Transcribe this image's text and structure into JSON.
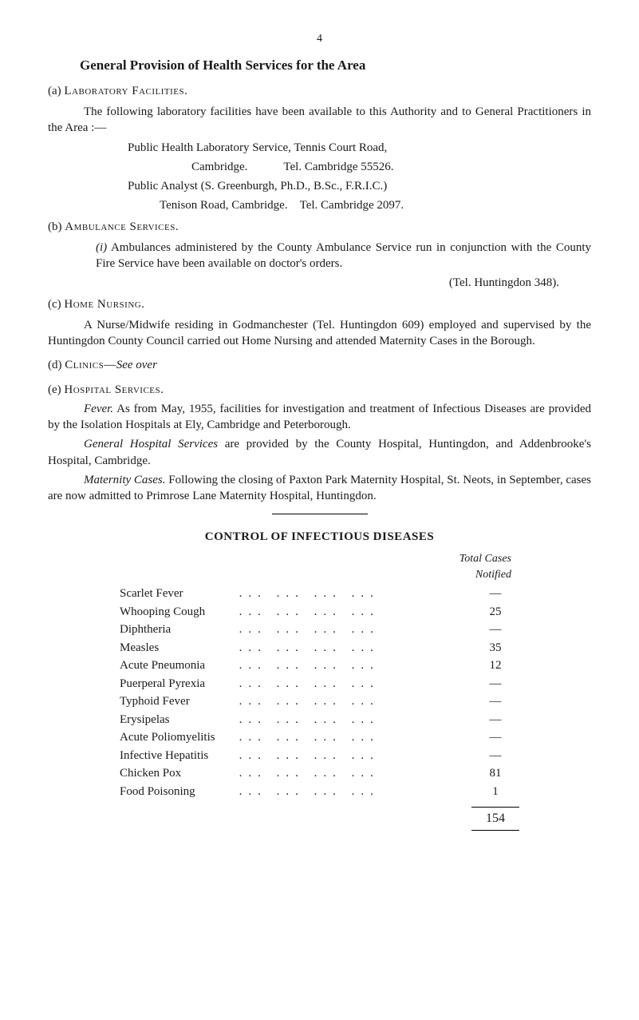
{
  "page_number": "4",
  "title": "General Provision of Health Services for the Area",
  "section_a": {
    "label": "(a)",
    "heading": "Laboratory Facilities.",
    "para1": "The following laboratory facilities have been available to this Authority and to General Practitioners in the Area :—",
    "line1": "Public Health Laboratory Service, Tennis Court Road,",
    "line2": "Cambridge.   Tel. Cambridge 55526.",
    "line3": "Public Analyst (S. Greenburgh, Ph.D., B.Sc., F.R.I.C.)",
    "line4": "Tenison Road, Cambridge. Tel. Cambridge 2097."
  },
  "section_b": {
    "label": "(b)",
    "heading": "Ambulance Services.",
    "sub_label": "(i)",
    "para1": "Ambulances administered by the County Ambulance Service run in conjunction with the County Fire Service have been available on doctor's orders.",
    "tel": "(Tel. Huntingdon 348)."
  },
  "section_c": {
    "label": "(c)",
    "heading": "Home Nursing.",
    "para1": "A Nurse/Midwife residing in Godmanchester (Tel. Huntingdon 609) employed and supervised by the Huntingdon County Council carried out Home Nursing and attended Maternity Cases in the Borough."
  },
  "section_d": {
    "label": "(d)",
    "heading": "Clinics—",
    "see": "See over"
  },
  "section_e": {
    "label": "(e)",
    "heading": "Hospital Services.",
    "fever_label": "Fever.",
    "fever_text": " As from May, 1955, facilities for investigation and treatment of Infectious Diseases are provided by the Isolation Hospitals at Ely, Cambridge and Peterborough.",
    "general_label": "General Hospital Services",
    "general_text": " are provided by the County Hospital, Huntingdon, and Addenbrooke's Hospital, Cambridge.",
    "maternity_label": "Maternity Cases.",
    "maternity_text": " Following the closing of Paxton Park Maternity Hospital, St. Neots, in September, cases are now admitted to Primrose Lane Maternity Hospital, Huntingdon."
  },
  "table": {
    "title": "CONTROL OF INFECTIOUS DISEASES",
    "header1": "Total Cases",
    "header2": "Notified",
    "rows": [
      {
        "label": "Scarlet Fever",
        "value": "—"
      },
      {
        "label": "Whooping Cough",
        "value": "25"
      },
      {
        "label": "Diphtheria",
        "value": "—"
      },
      {
        "label": "Measles",
        "value": "35"
      },
      {
        "label": "Acute Pneumonia",
        "value": "12"
      },
      {
        "label": "Puerperal Pyrexia",
        "value": "—"
      },
      {
        "label": "Typhoid Fever",
        "value": "—"
      },
      {
        "label": "Erysipelas",
        "value": "—"
      },
      {
        "label": "Acute Poliomyelitis",
        "value": "—"
      },
      {
        "label": "Infective Hepatitis",
        "value": "—"
      },
      {
        "label": "Chicken Pox",
        "value": "81"
      },
      {
        "label": "Food Poisoning",
        "value": "1"
      }
    ],
    "total": "154"
  }
}
